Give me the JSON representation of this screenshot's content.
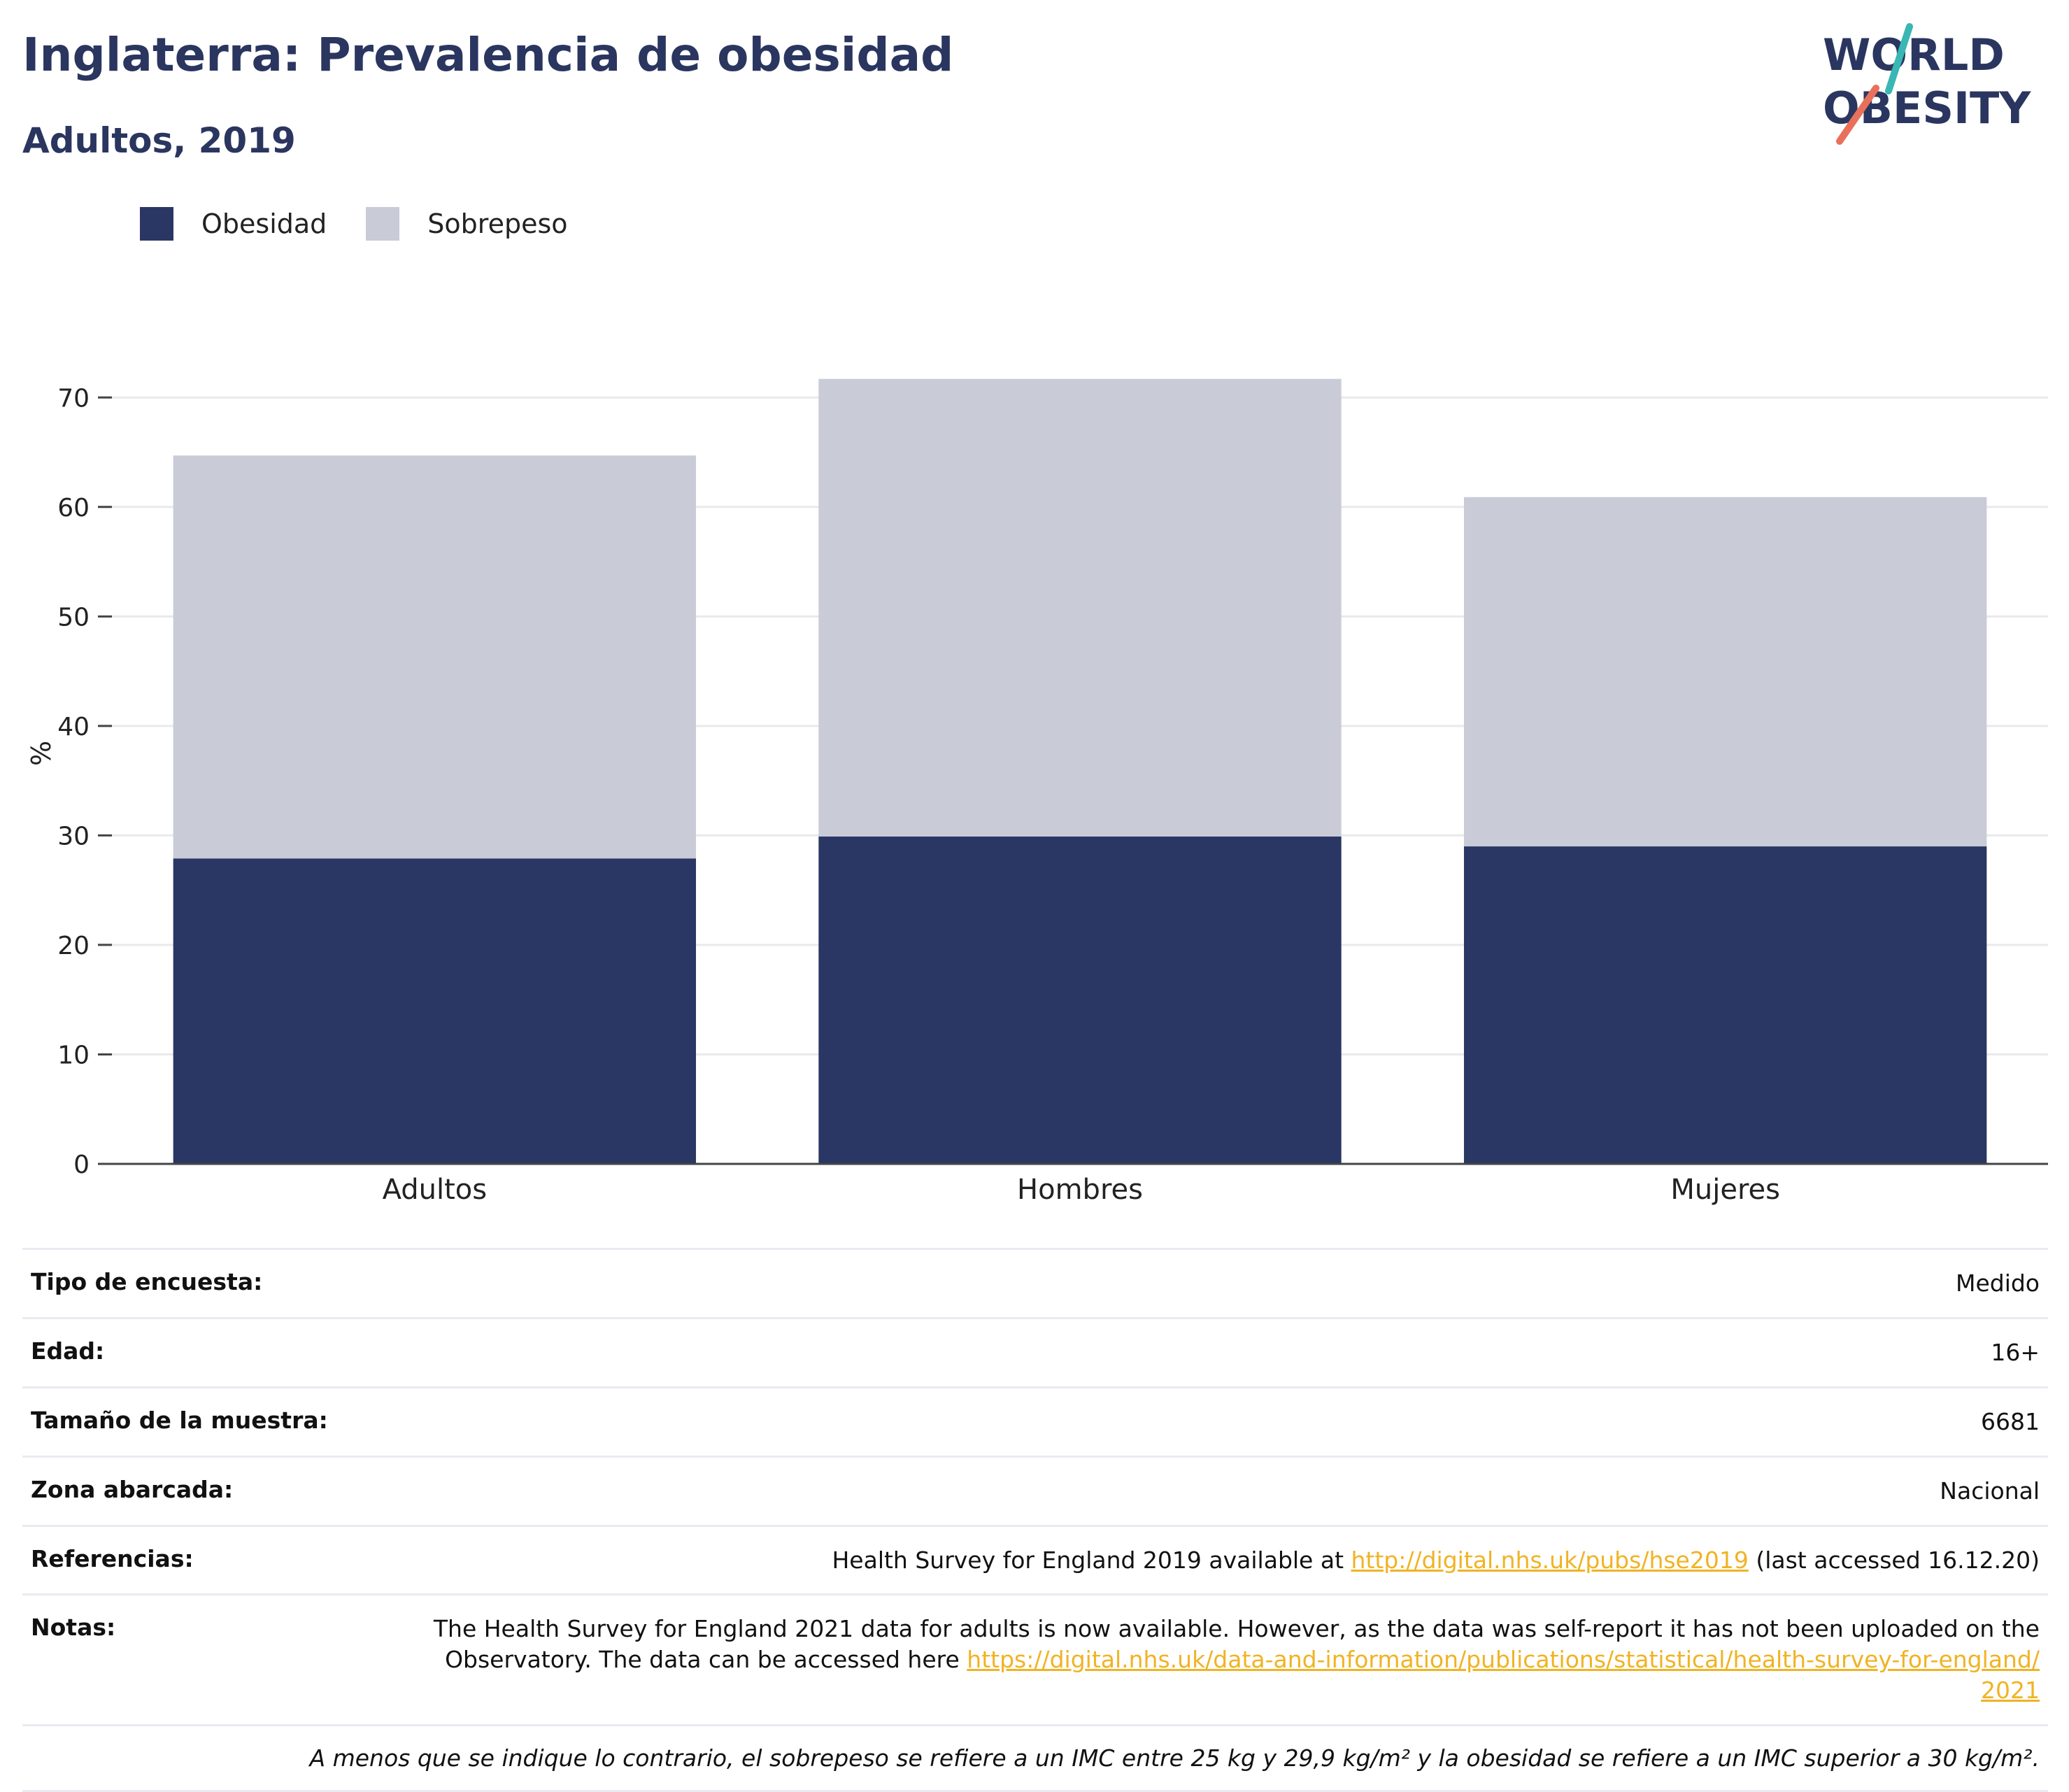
{
  "header": {
    "title": "Inglaterra: Prevalencia de obesidad",
    "subtitle": "Adultos, 2019"
  },
  "logo": {
    "line1": "WORLD",
    "line2": "OBESITY",
    "accent_teal": "#38b7b4",
    "accent_coral": "#e9705a"
  },
  "colors": {
    "obesity": "#2a3764",
    "overweight": "#c9cbd7",
    "grid": "#e9e9ee",
    "axis": "#444444",
    "link": "#f0b323"
  },
  "chart_data": {
    "type": "bar",
    "stacked": true,
    "categories": [
      "Adultos",
      "Hombres",
      "Mujeres"
    ],
    "series": [
      {
        "name": "Obesidad",
        "values": [
          27.9,
          29.9,
          29.0
        ]
      },
      {
        "name": "Sobrepeso",
        "values": [
          36.8,
          41.8,
          31.9
        ]
      }
    ],
    "ylabel": "%",
    "ylim": [
      0,
      75
    ],
    "yticks": [
      0,
      10,
      20,
      30,
      40,
      50,
      60,
      70
    ],
    "grid": true,
    "legend_position": "top-left"
  },
  "info": {
    "rows": [
      {
        "key": "Tipo de encuesta:",
        "value": "Medido"
      },
      {
        "key": "Edad:",
        "value": "16+"
      },
      {
        "key": "Tamaño de la muestra:",
        "value": "6681"
      },
      {
        "key": "Zona abarcada:",
        "value": "Nacional"
      }
    ],
    "references": {
      "key": "Referencias:",
      "text_before": "Health Survey for England 2019 available at ",
      "link": "http://digital.nhs.uk/pubs/hse2019",
      "text_after": " (last accessed 16.12.20)"
    },
    "notes": {
      "key": "Notas:",
      "text": "The Health Survey for England 2021 data for adults is now available. However, as the data was self-report it has not been uploaded on the Observatory. The data can be accessed here ",
      "link": "https://digital.nhs.uk/data-and-information/publications/statistical/health-survey-for-england/2021"
    },
    "footnote": "A menos que se indique lo contrario, el sobrepeso se refiere a un IMC entre 25 kg y 29,9 kg/m² y la obesidad se refiere a un IMC superior a 30 kg/m²."
  }
}
